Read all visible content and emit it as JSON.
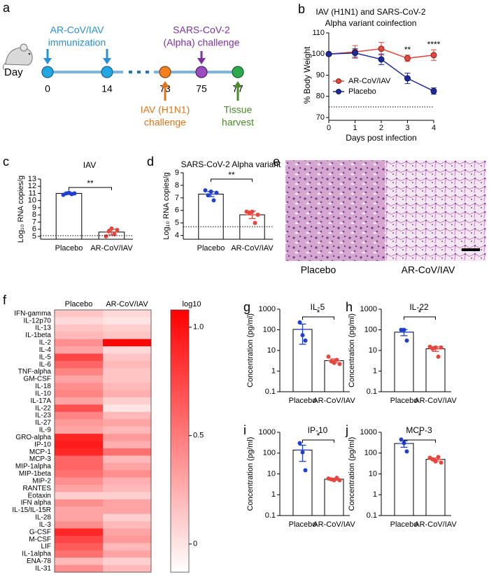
{
  "panel_labels": [
    "a",
    "b",
    "c",
    "d",
    "e",
    "f",
    "g",
    "h",
    "i",
    "j"
  ],
  "timeline": {
    "day_label": "Day",
    "days": [
      0,
      14,
      73,
      75,
      77
    ],
    "events": [
      {
        "lines": [
          "AR-CoV/IAV",
          "immunization"
        ]
      },
      {
        "lines": [
          "SARS-CoV-2",
          "(Alpha) challenge"
        ]
      },
      {
        "lines": [
          "IAV (H1N1)",
          "challenge"
        ]
      },
      {
        "lines": [
          "Tissue",
          "harvest"
        ]
      }
    ]
  },
  "histology": {
    "labels": [
      "Placebo",
      "AR-CoV/IAV"
    ]
  },
  "chart_data": [
    {
      "type": "line",
      "title": [
        "IAV (H1N1) and SARS-CoV-2",
        "Alpha variant coinfection"
      ],
      "xlabel": "Days post infection",
      "ylabel": "% Body Weight",
      "x": [
        0,
        1,
        2,
        3,
        4
      ],
      "xlim": [
        0,
        4
      ],
      "xticks": [
        0,
        1,
        2,
        3,
        4
      ],
      "ylim": [
        70,
        110
      ],
      "yticks": [
        70,
        80,
        90,
        100,
        110
      ],
      "reference_line": 75,
      "legend": "left",
      "series": [
        {
          "name": "AR-CoV/IAV",
          "color": "#e8453c",
          "values": [
            100,
            101,
            102.5,
            98,
            99.5
          ],
          "errors": [
            0,
            3,
            3,
            1.5,
            2.5
          ]
        },
        {
          "name": "Placebo",
          "color": "#1c2a9e",
          "values": [
            100,
            100.5,
            97.5,
            88.5,
            82.5
          ],
          "errors": [
            0,
            2,
            2.5,
            2.5,
            1.5
          ]
        }
      ],
      "annotations": [
        {
          "x": 3,
          "text": "**"
        },
        {
          "x": 4,
          "text": "****"
        }
      ]
    },
    {
      "type": "bar",
      "title": "IAV",
      "ylabel": "Log₁₀ RNA copies/g",
      "categories": [
        "Placebo",
        "AR-CoV/IAV"
      ],
      "values": [
        11.0,
        5.6
      ],
      "errors": [
        0.15,
        0.4
      ],
      "points": [
        [
          10.8,
          11.0,
          11.1,
          10.9,
          11.0
        ],
        [
          5.0,
          5.7,
          6.1,
          5.3,
          5.9
        ]
      ],
      "point_colors": [
        "#1f3fd0",
        "#e8453c"
      ],
      "reference_line": 5.1,
      "significance": "**",
      "ylim": [
        4.6,
        13
      ],
      "yticks": [
        5,
        6,
        7,
        8,
        9,
        10,
        11,
        12,
        13
      ]
    },
    {
      "type": "bar",
      "title": "SARS-CoV-2 Alpha variant",
      "ylabel": "Log₁₀ RNA copies/g",
      "categories": [
        "Placebo",
        "AR-CoV/IAV"
      ],
      "values": [
        7.3,
        5.65
      ],
      "errors": [
        0.2,
        0.3
      ],
      "points": [
        [
          7.6,
          7.2,
          7.5,
          6.8,
          7.4
        ],
        [
          5.9,
          5.8,
          5.9,
          5.0,
          5.65
        ]
      ],
      "point_colors": [
        "#1f3fd0",
        "#e8453c"
      ],
      "reference_line": 4.7,
      "significance": "**",
      "ylim": [
        3.7,
        9
      ],
      "yticks": [
        4,
        5,
        6,
        7,
        8,
        9
      ]
    },
    {
      "type": "heatmap",
      "columns": [
        "Placebo",
        "AR-CoV/IAV"
      ],
      "rows": [
        "IFN-gamma",
        "IL-12p70",
        "IL-13",
        "IL-1beta",
        "IL-2",
        "IL-4",
        "IL-5",
        "IL-6",
        "TNF-alpha",
        "GM-CSF",
        "IL-18",
        "IL-10",
        "IL-17A",
        "IL-22",
        "IL-23",
        "IL-27",
        "IL-9",
        "GRO-alpha",
        "IP-10",
        "MCP-1",
        "MCP-3",
        "MIP-1alpha",
        "MIP-1beta",
        "MIP-2",
        "RANTES",
        "Eotaxin",
        "IFN alpha",
        "IL-15/IL-15R",
        "IL-28",
        "IL-3",
        "G-CSF",
        "M-CSF",
        "LIF",
        "IL-1alpha",
        "ENA-78",
        "IL-31"
      ],
      "values": [
        [
          0.15,
          0.05
        ],
        [
          0.05,
          0
        ],
        [
          0.15,
          0.1
        ],
        [
          0.2,
          0.15
        ],
        [
          0.4,
          1.05
        ],
        [
          0.3,
          0.05
        ],
        [
          0.75,
          0.15
        ],
        [
          0.6,
          0.2
        ],
        [
          0.45,
          0.15
        ],
        [
          0.3,
          0.15
        ],
        [
          0.4,
          0.2
        ],
        [
          0.45,
          0.25
        ],
        [
          0.3,
          0.1
        ],
        [
          0.7,
          0
        ],
        [
          0.45,
          0.2
        ],
        [
          0.35,
          0.3
        ],
        [
          0.3,
          0.2
        ],
        [
          0.9,
          0.35
        ],
        [
          0.95,
          0.25
        ],
        [
          0.9,
          0.55
        ],
        [
          0.6,
          0.2
        ],
        [
          0.6,
          0.3
        ],
        [
          0.55,
          0.4
        ],
        [
          0.4,
          0.25
        ],
        [
          0.3,
          0.2
        ],
        [
          0.1,
          0.1
        ],
        [
          0.4,
          0.3
        ],
        [
          0.3,
          0.3
        ],
        [
          0.3,
          0.1
        ],
        [
          0.4,
          0.2
        ],
        [
          0.9,
          0.3
        ],
        [
          0.75,
          0.35
        ],
        [
          0.65,
          0.2
        ],
        [
          0.55,
          0.3
        ],
        [
          0.2,
          0.1
        ],
        [
          0.4,
          0.2
        ]
      ],
      "colorbar_label": "log10",
      "clim": [
        -0.13,
        1.08
      ],
      "cticks": [
        0,
        0.5,
        {
          "value": 1,
          "label": "1.0"
        }
      ],
      "colors": [
        "#ffffff",
        "#ff0000"
      ]
    },
    {
      "type": "bar",
      "log_scale": true,
      "title": "IL-5",
      "ylabel": "Concentration (pg/ml)",
      "categories": [
        "Placebo",
        "AR-CoV/IAV"
      ],
      "values": [
        105,
        3.2
      ],
      "errors": [
        85,
        0.7
      ],
      "points": [
        [
          230,
          55,
          30
        ],
        [
          5,
          3,
          2.5,
          3.5,
          2.2
        ]
      ],
      "point_colors": [
        "#1f3fd0",
        "#e8453c"
      ],
      "significance": "*",
      "ylim": [
        0.1,
        1000
      ],
      "yticks": [
        0.1,
        1,
        10,
        100,
        1000
      ]
    },
    {
      "type": "bar",
      "log_scale": true,
      "title": "IL-22",
      "ylabel": "Concentration (pg/ml)",
      "categories": [
        "Placebo",
        "AR-CoV/IAV"
      ],
      "values": [
        77,
        12
      ],
      "errors": [
        25,
        3
      ],
      "points": [
        [
          100,
          100,
          30
        ],
        [
          15,
          12,
          14,
          5,
          14
        ]
      ],
      "point_colors": [
        "#1f3fd0",
        "#e8453c"
      ],
      "significance": "*",
      "ylim": [
        0.1,
        1000
      ],
      "yticks": [
        0.1,
        1,
        10,
        100,
        1000
      ]
    },
    {
      "type": "bar",
      "log_scale": true,
      "title": "IP-10",
      "ylabel": "Concentration (pg/ml)",
      "categories": [
        "Placebo",
        "AR-CoV/IAV"
      ],
      "values": [
        140,
        5.6
      ],
      "errors": [
        100,
        0.6
      ],
      "points": [
        [
          300,
          110,
          15
        ],
        [
          6,
          5.5,
          5,
          6.5,
          5
        ]
      ],
      "point_colors": [
        "#1f3fd0",
        "#e8453c"
      ],
      "significance": "*",
      "ylim": [
        0.1,
        1000
      ],
      "yticks": [
        0.1,
        1,
        10,
        100,
        1000
      ]
    },
    {
      "type": "bar",
      "log_scale": true,
      "title": "MCP-3",
      "ylabel": "Concentration (pg/ml)",
      "categories": [
        "Placebo",
        "AR-CoV/IAV"
      ],
      "values": [
        290,
        50
      ],
      "errors": [
        100,
        8
      ],
      "points": [
        [
          450,
          300,
          120
        ],
        [
          60,
          50,
          40,
          65,
          35
        ]
      ],
      "point_colors": [
        "#1f3fd0",
        "#e8453c"
      ],
      "significance": "*",
      "ylim": [
        0.1,
        1000
      ],
      "yticks": [
        0.1,
        1,
        10,
        100,
        1000
      ]
    }
  ]
}
